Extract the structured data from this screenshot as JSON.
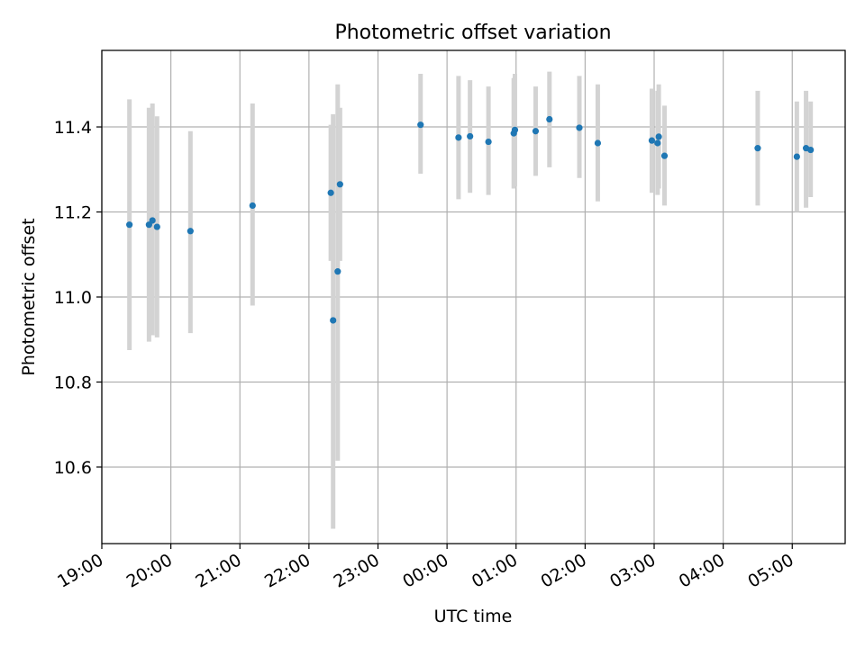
{
  "chart_data": {
    "type": "scatter",
    "title": "Photometric offset variation",
    "xlabel": "UTC time",
    "ylabel": "Photometric offset",
    "grid": true,
    "legend": "none",
    "x_unit": "UTC",
    "xlim": [
      "19:00",
      "05:46"
    ],
    "ylim": [
      10.42,
      11.58
    ],
    "x_ticks": [
      "19:00",
      "20:00",
      "21:00",
      "22:00",
      "23:00",
      "00:00",
      "01:00",
      "02:00",
      "03:00",
      "04:00",
      "05:00"
    ],
    "y_ticks": [
      "10.6",
      "10.8",
      "11.0",
      "11.2",
      "11.4"
    ],
    "colors": {
      "point": "#1f77b4",
      "errorbar": "#d3d3d3",
      "grid": "#b0b0b0"
    },
    "points": [
      {
        "x": "19:24",
        "y": 11.17,
        "ylow": 10.875,
        "yhigh": 11.465
      },
      {
        "x": "19:41",
        "y": 11.17,
        "ylow": 10.895,
        "yhigh": 11.445
      },
      {
        "x": "19:44",
        "y": 11.18,
        "ylow": 10.91,
        "yhigh": 11.455
      },
      {
        "x": "19:48",
        "y": 11.165,
        "ylow": 10.905,
        "yhigh": 11.425
      },
      {
        "x": "20:17",
        "y": 11.155,
        "ylow": 10.915,
        "yhigh": 11.39
      },
      {
        "x": "21:11",
        "y": 11.215,
        "ylow": 10.98,
        "yhigh": 11.455
      },
      {
        "x": "22:19",
        "y": 11.245,
        "ylow": 11.085,
        "yhigh": 11.405
      },
      {
        "x": "22:21",
        "y": 10.945,
        "ylow": 10.455,
        "yhigh": 11.43
      },
      {
        "x": "22:25",
        "y": 11.06,
        "ylow": 10.615,
        "yhigh": 11.5
      },
      {
        "x": "22:27",
        "y": 11.265,
        "ylow": 11.085,
        "yhigh": 11.445
      },
      {
        "x": "23:37",
        "y": 11.405,
        "ylow": 11.29,
        "yhigh": 11.525
      },
      {
        "x": "00:10",
        "y": 11.375,
        "ylow": 11.23,
        "yhigh": 11.52
      },
      {
        "x": "00:20",
        "y": 11.378,
        "ylow": 11.245,
        "yhigh": 11.51
      },
      {
        "x": "00:36",
        "y": 11.365,
        "ylow": 11.24,
        "yhigh": 11.495
      },
      {
        "x": "00:58",
        "y": 11.385,
        "ylow": 11.255,
        "yhigh": 11.515
      },
      {
        "x": "00:59",
        "y": 11.393,
        "ylow": 11.26,
        "yhigh": 11.525
      },
      {
        "x": "01:17",
        "y": 11.39,
        "ylow": 11.285,
        "yhigh": 11.495
      },
      {
        "x": "01:29",
        "y": 11.418,
        "ylow": 11.305,
        "yhigh": 11.53
      },
      {
        "x": "01:55",
        "y": 11.398,
        "ylow": 11.28,
        "yhigh": 11.52
      },
      {
        "x": "02:11",
        "y": 11.362,
        "ylow": 11.225,
        "yhigh": 11.5
      },
      {
        "x": "02:58",
        "y": 11.368,
        "ylow": 11.245,
        "yhigh": 11.49
      },
      {
        "x": "03:03",
        "y": 11.362,
        "ylow": 11.24,
        "yhigh": 11.485
      },
      {
        "x": "03:04",
        "y": 11.377,
        "ylow": 11.255,
        "yhigh": 11.5
      },
      {
        "x": "03:09",
        "y": 11.332,
        "ylow": 11.215,
        "yhigh": 11.45
      },
      {
        "x": "04:30",
        "y": 11.35,
        "ylow": 11.215,
        "yhigh": 11.485
      },
      {
        "x": "05:04",
        "y": 11.33,
        "ylow": 11.2,
        "yhigh": 11.46
      },
      {
        "x": "05:12",
        "y": 11.35,
        "ylow": 11.21,
        "yhigh": 11.485
      },
      {
        "x": "05:16",
        "y": 11.346,
        "ylow": 11.235,
        "yhigh": 11.46
      }
    ]
  }
}
